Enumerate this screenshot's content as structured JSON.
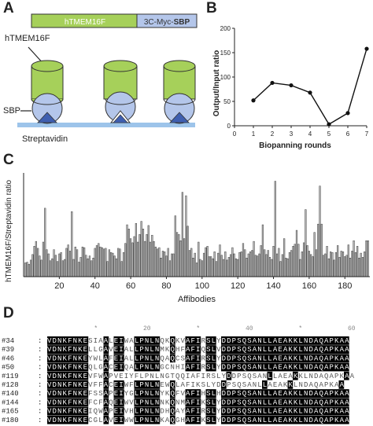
{
  "panels": {
    "a": "A",
    "b": "B",
    "c": "C",
    "d": "D"
  },
  "panel_a": {
    "construct_left": "hTMEM16F",
    "construct_right_prefix": "3C-Myc-",
    "construct_right_bold": "SBP",
    "label_protein": "hTMEM16F",
    "label_sbp": "SBP",
    "label_surface": "Streptavidin",
    "colors": {
      "green": "#a6d05a",
      "blue": "#b4c6ea",
      "triangle": "#3f5fb0",
      "surface": "#9dc4ea"
    }
  },
  "chart_data": [
    {
      "type": "line",
      "title": "",
      "xlabel": "Biopanning rounds",
      "ylabel": "Output/Input ratio",
      "x": [
        1,
        2,
        3,
        4,
        5,
        6,
        7
      ],
      "series": [
        {
          "values": [
            52,
            88,
            83,
            68,
            3,
            26,
            158
          ]
        }
      ],
      "xlim": [
        0,
        7
      ],
      "ylim": [
        0,
        200
      ],
      "xticks": [
        "0",
        "1",
        "2",
        "3",
        "4",
        "5",
        "6",
        "7"
      ],
      "yticks": [
        "0",
        "50",
        "100",
        "150",
        "200"
      ]
    },
    {
      "type": "bar",
      "title": "",
      "xlabel": "Affibodies",
      "ylabel": "hTMEM16F/Streptavidin ratio",
      "xlim": [
        0,
        194
      ],
      "ylim": [
        0,
        15
      ],
      "xticks": [
        "20",
        "40",
        "60",
        "80",
        "100",
        "120",
        "140",
        "160",
        "180"
      ],
      "bar_color": "#b9b9b9",
      "values": [
        2,
        2.1,
        1.8,
        2.4,
        3.2,
        4.4,
        5.1,
        4.1,
        3,
        2.4,
        5,
        9.9,
        3.9,
        3.3,
        2.3,
        2.6,
        3.9,
        3.1,
        2.2,
        3.3,
        3.5,
        2.3,
        2.5,
        4.1,
        4.6,
        3.7,
        9.4,
        2.5,
        4.3,
        3.9,
        2.1,
        2.8,
        4.3,
        4.2,
        3.1,
        2.6,
        3,
        2.3,
        2.7,
        4.1,
        4.5,
        4.8,
        4.3,
        4.2,
        4,
        4.1,
        2.2,
        3.9,
        3.5,
        3.4,
        3,
        2.6,
        4.1,
        4,
        2.2,
        3.5,
        4.8,
        7.5,
        6.9,
        5.5,
        4.9,
        5.8,
        7.7,
        5,
        6.1,
        8,
        6.9,
        5.1,
        6.1,
        7.4,
        5,
        6,
        5.1,
        4.3,
        4,
        4.2,
        2.7,
        3.7,
        3.6,
        3,
        4.1,
        2.3,
        3.3,
        3.3,
        8.8,
        6.4,
        6.1,
        5.2,
        12.2,
        5.5,
        11.7,
        7.3,
        3.8,
        4.1,
        2.7,
        3.4,
        2,
        5,
        2.5,
        2.3,
        3.4,
        4.2,
        4.4,
        2.9,
        2.9,
        2.6,
        3.6,
        2.2,
        3.4,
        4.6,
        3.1,
        2.5,
        3.6,
        2.4,
        2.8,
        3.2,
        4.2,
        3.3,
        2.6,
        2.5,
        3.5,
        3.6,
        4.8,
        3.9,
        2.7,
        3.3,
        3.6,
        3.8,
        5.1,
        3.1,
        3,
        3.3,
        4.5,
        7.5,
        3.9,
        3.2,
        3.8,
        2.8,
        2.5,
        4.4,
        13.8,
        3.3,
        4.1,
        2.2,
        3.2,
        5.5,
        2.7,
        2.6,
        3.5,
        3.8,
        4.4,
        4.7,
        6.7,
        4.7,
        2.5,
        3.6,
        4.9,
        9.7,
        4.5,
        3.7,
        3.2,
        2.9,
        6.4,
        3.9,
        7.6,
        13.1,
        7.6,
        3.1,
        3.3,
        4.4,
        2.6,
        3.6,
        3.5,
        2.4,
        3.5,
        4.5,
        2.8,
        3.7,
        3.6,
        2.9,
        3.1,
        4.6,
        2.7,
        3.7,
        5.2,
        3.5,
        4.4,
        2.7,
        3.4,
        2.8,
        3.6,
        5.2,
        5.2
      ]
    }
  ],
  "panel_d": {
    "ruler_marks": [
      "*",
      "20",
      "*",
      "40",
      "*",
      "60"
    ],
    "rows": [
      {
        "id": "#34",
        "seq": "VDNKFNKESIAALEIWALPNLNQKQKVAFIRSLYDDPSQSANLLAEAKKLNDAQAPKAA"
      },
      {
        "id": "#39",
        "seq": "VDNKFNKELLGAVEIALLPNLNMKQHFAFIQSLVDDPSQSANLLAEAKKLNDAQAPKAA"
      },
      {
        "id": "#46",
        "seq": "VDNKFNKEYWLAFEIALLPNLNQAQCSAFIRSLYDDPSQSANLLAEAKKLNDAQAPKAA"
      },
      {
        "id": "#50",
        "seq": "VDNKFNKEQLGACEIQALPNLNGCNHIAFIRSLYDDPSQSANLLAEAKKLNDAQAPKAA"
      },
      {
        "id": "#119",
        "seq": "VDNKFNKEVFWAPVEIYFLPNLNGTQQIAFIRSLYDDPSQSANLLAEAKKLNDAQAPKAA"
      },
      {
        "id": "#128",
        "seq": "VDNKFNKEVFFACEIWFLPNLNEWQLAFIKSLYDDPSQSANLLAEAKKLNDAQAPKAA"
      },
      {
        "id": "#140",
        "seq": "VDNKFNKEFSSAPEIYGLPNLNYKQFVAFIHSLHDDPSQSANLLAEAKKLNDAQAPKAA"
      },
      {
        "id": "#144",
        "seq": "VDNKFNKEFCFAQEIWVLPNLNNKQNMAFIKSLYDDPSQSANLLAEAKKLNDAQAPKAA"
      },
      {
        "id": "#165",
        "seq": "VDNKFNKEIQWAPEIVHLPNLNDHQAYAFIRSLYDDPSQSANLLAEAKKLNDAQAPKAA"
      },
      {
        "id": "#180",
        "seq": "VDNKFNKECGLAVEIWWLPNLNKAQGHAFIKSLYDDPSQSANLLAEAKKLNDAQAPKAA"
      }
    ]
  }
}
